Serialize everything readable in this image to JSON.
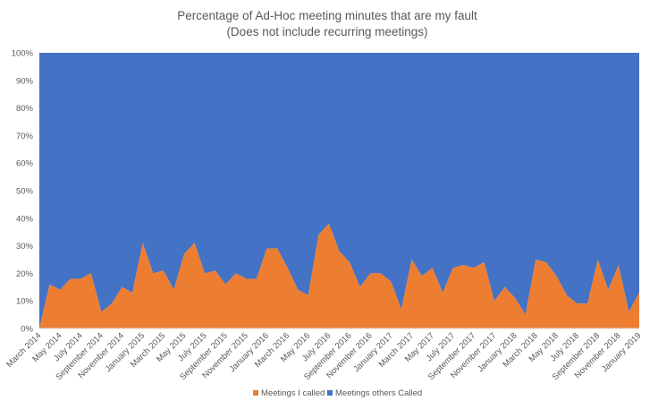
{
  "chart_data": {
    "type": "area",
    "stacked": "percent",
    "title": "Percentage of Ad-Hoc meeting minutes that are my fault",
    "subtitle": "(Does not include recurring meetings)",
    "ylim": [
      0,
      100
    ],
    "y_ticks": [
      "0%",
      "10%",
      "20%",
      "30%",
      "40%",
      "50%",
      "60%",
      "70%",
      "80%",
      "90%",
      "100%"
    ],
    "grid": false,
    "legend_position": "bottom",
    "categories": [
      "March 2014",
      "April 2014",
      "May 2014",
      "June 2014",
      "July 2014",
      "August 2014",
      "September 2014",
      "October 2014",
      "November 2014",
      "December 2014",
      "January 2015",
      "February 2015",
      "March 2015",
      "April 2015",
      "May 2015",
      "June 2015",
      "July 2015",
      "August 2015",
      "September 2015",
      "October 2015",
      "November 2015",
      "December 2015",
      "January 2016",
      "February 2016",
      "March 2016",
      "April 2016",
      "May 2016",
      "June 2016",
      "July 2016",
      "August 2016",
      "September 2016",
      "October 2016",
      "November 2016",
      "December 2016",
      "January 2017",
      "February 2017",
      "March 2017",
      "April 2017",
      "May 2017",
      "June 2017",
      "July 2017",
      "August 2017",
      "September 2017",
      "October 2017",
      "November 2017",
      "December 2017",
      "January 2018",
      "February 2018",
      "March 2018",
      "April 2018",
      "May 2018",
      "June 2018",
      "July 2018",
      "August 2018",
      "September 2018",
      "October 2018",
      "November 2018",
      "December 2018",
      "January 2019"
    ],
    "x_tick_labels": [
      "March 2014",
      "May 2014",
      "July 2014",
      "September 2014",
      "November 2014",
      "January 2015",
      "March 2015",
      "May 2015",
      "July 2015",
      "September 2015",
      "November 2015",
      "January 2016",
      "March 2016",
      "May 2016",
      "July 2016",
      "September 2016",
      "November 2016",
      "January 2017",
      "March 2017",
      "May 2017",
      "July 2017",
      "September 2017",
      "November 2017",
      "January 2018",
      "March 2018",
      "May 2018",
      "July 2018",
      "September 2018",
      "November 2018",
      "January 2019"
    ],
    "series": [
      {
        "name": "Meetings I called",
        "color": "#ED7D31",
        "values": [
          0,
          16,
          14,
          18,
          18,
          20,
          6,
          9,
          15,
          13,
          31,
          20,
          21,
          14,
          27,
          31,
          20,
          21,
          16,
          20,
          18,
          18,
          29,
          29,
          22,
          14,
          12,
          34,
          38,
          28,
          24,
          15,
          20,
          20,
          17,
          7,
          25,
          19,
          22,
          13,
          22,
          23,
          22,
          24,
          10,
          15,
          11,
          5,
          25,
          24,
          19,
          12,
          9,
          9,
          25,
          14,
          23,
          6,
          13
        ]
      },
      {
        "name": "Meetings others Called",
        "color": "#4472C4",
        "values": [
          100,
          84,
          86,
          82,
          82,
          80,
          94,
          91,
          85,
          87,
          69,
          80,
          79,
          86,
          73,
          69,
          80,
          79,
          84,
          80,
          82,
          82,
          71,
          71,
          78,
          86,
          88,
          66,
          62,
          72,
          76,
          85,
          80,
          80,
          83,
          93,
          75,
          81,
          78,
          87,
          78,
          77,
          78,
          76,
          90,
          85,
          89,
          95,
          75,
          76,
          81,
          88,
          91,
          91,
          75,
          86,
          77,
          94,
          87
        ]
      }
    ]
  }
}
